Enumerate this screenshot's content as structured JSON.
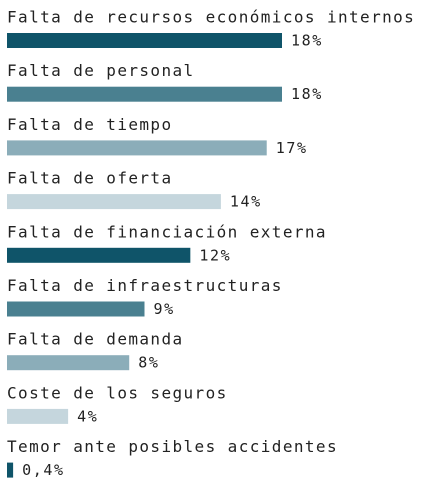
{
  "chart_data": {
    "type": "bar",
    "categories": [
      "Falta de recursos económicos internos",
      "Falta de personal",
      "Falta de tiempo",
      "Falta de oferta",
      "Falta de financiación externa",
      "Falta de infraestructuras",
      "Falta de demanda",
      "Coste de los seguros",
      "Temor ante posibles accidentes"
    ],
    "values": [
      18,
      18,
      17,
      14,
      12,
      9,
      8,
      4,
      0.4
    ],
    "value_labels": [
      "18%",
      "18%",
      "17%",
      "14%",
      "12%",
      "9%",
      "8%",
      "4%",
      "0,4%"
    ],
    "colors": [
      "#0f5469",
      "#4a8090",
      "#8badb9",
      "#c5d6dd",
      "#0f5469",
      "#4a8090",
      "#8badb9",
      "#c5d6dd",
      "#0f5469"
    ]
  }
}
